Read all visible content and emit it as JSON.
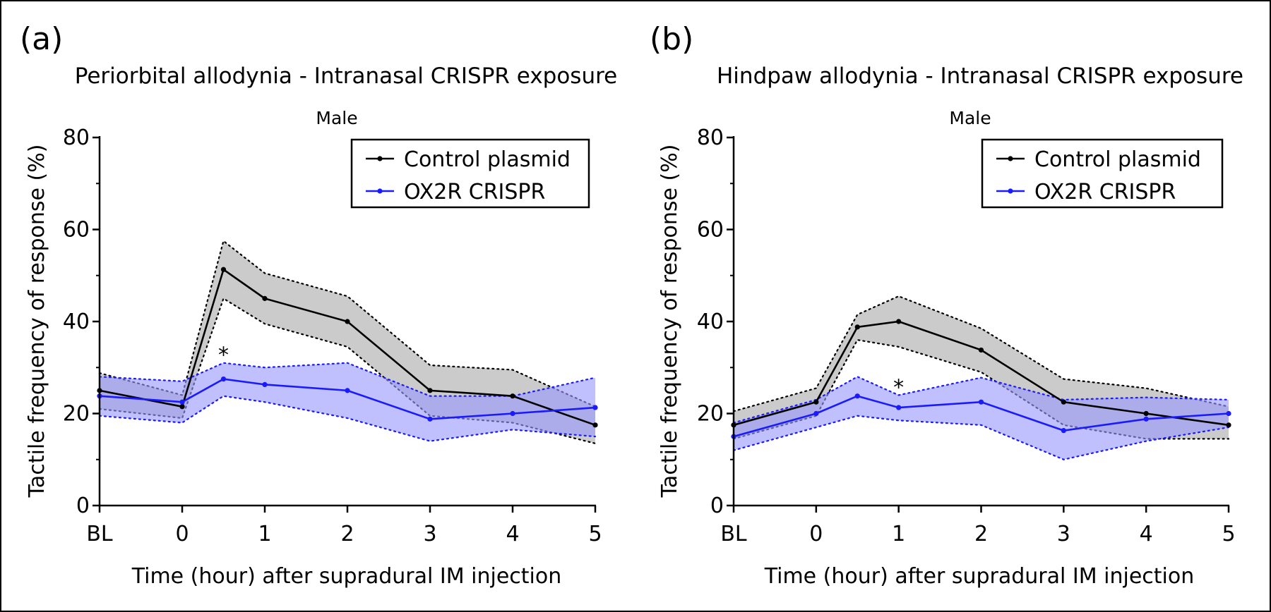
{
  "chart_data": [
    {
      "type": "line",
      "panel_label": "(a)",
      "title": "Periorbital allodynia - Intranasal CRISPR exposure",
      "subtitle": "Male",
      "xlabel": "Time (hour) after supradural IM injection",
      "ylabel": "Tactile frequency of response (%)",
      "ylim": [
        0,
        80
      ],
      "yticks": [
        "0",
        "20",
        "40",
        "60",
        "80"
      ],
      "xticks": [
        "BL",
        "0",
        "1",
        "2",
        "3",
        "4",
        "5"
      ],
      "xtick_positions": [
        -1,
        0,
        1,
        2,
        3,
        4,
        5
      ],
      "x": [
        -1,
        0,
        0.5,
        1,
        2,
        3,
        4,
        5
      ],
      "legend": [
        "Control plasmid",
        "OX2R CRISPR"
      ],
      "legend_position": "top-right",
      "annotation": {
        "text": "*",
        "x": 0.5,
        "y": 33
      },
      "series": [
        {
          "name": "Control plasmid",
          "color": "#000000",
          "band_color": "#c8c8c8",
          "values": [
            25,
            21.5,
            51.3,
            45,
            40,
            25,
            23.8,
            17.5
          ],
          "upper": [
            28.8,
            24,
            57.5,
            50.5,
            45.5,
            30.5,
            29.5,
            21.5
          ],
          "lower": [
            21,
            19,
            45,
            39.5,
            34.5,
            19.5,
            18,
            13.5
          ]
        },
        {
          "name": "OX2R CRISPR",
          "color": "#1a1aff",
          "band_color": "#9999ff",
          "values": [
            23.8,
            22.5,
            27.5,
            26.3,
            25,
            18.8,
            20,
            21.3
          ],
          "upper": [
            28,
            27,
            31,
            30,
            31,
            23.8,
            23.8,
            27.8
          ],
          "lower": [
            19.5,
            18,
            23.8,
            22.5,
            19,
            14,
            16.5,
            15
          ]
        }
      ]
    },
    {
      "type": "line",
      "panel_label": "(b)",
      "title": "Hindpaw allodynia - Intranasal CRISPR exposure",
      "subtitle": "Male",
      "xlabel": "Time (hour) after supradural IM injection",
      "ylabel": "Tactile frequency of response (%)",
      "ylim": [
        0,
        80
      ],
      "yticks": [
        "0",
        "20",
        "40",
        "60",
        "80"
      ],
      "xticks": [
        "BL",
        "0",
        "1",
        "2",
        "3",
        "4",
        "5"
      ],
      "xtick_positions": [
        -1,
        0,
        1,
        2,
        3,
        4,
        5
      ],
      "x": [
        -1,
        0,
        0.5,
        1,
        2,
        3,
        4,
        5
      ],
      "legend": [
        "Control plasmid",
        "OX2R CRISPR"
      ],
      "legend_position": "top-right",
      "annotation": {
        "text": "*",
        "x": 1,
        "y": 26
      },
      "series": [
        {
          "name": "Control plasmid",
          "color": "#000000",
          "band_color": "#c8c8c8",
          "values": [
            17.5,
            22.5,
            38.8,
            40,
            33.8,
            22.5,
            20,
            17.5
          ],
          "upper": [
            20.5,
            25.5,
            41.5,
            45.5,
            38.5,
            27.5,
            25.5,
            21.5
          ],
          "lower": [
            14.5,
            19.5,
            36,
            34.5,
            29,
            17.5,
            14.5,
            14.5
          ]
        },
        {
          "name": "OX2R CRISPR",
          "color": "#1a1aff",
          "band_color": "#9999ff",
          "values": [
            15,
            20,
            23.8,
            21.3,
            22.5,
            16.3,
            18.8,
            20
          ],
          "upper": [
            18,
            23,
            28,
            24,
            27.8,
            23,
            23.5,
            23
          ],
          "lower": [
            12,
            17,
            19.5,
            18.5,
            17.5,
            10,
            14,
            17
          ]
        }
      ]
    }
  ]
}
